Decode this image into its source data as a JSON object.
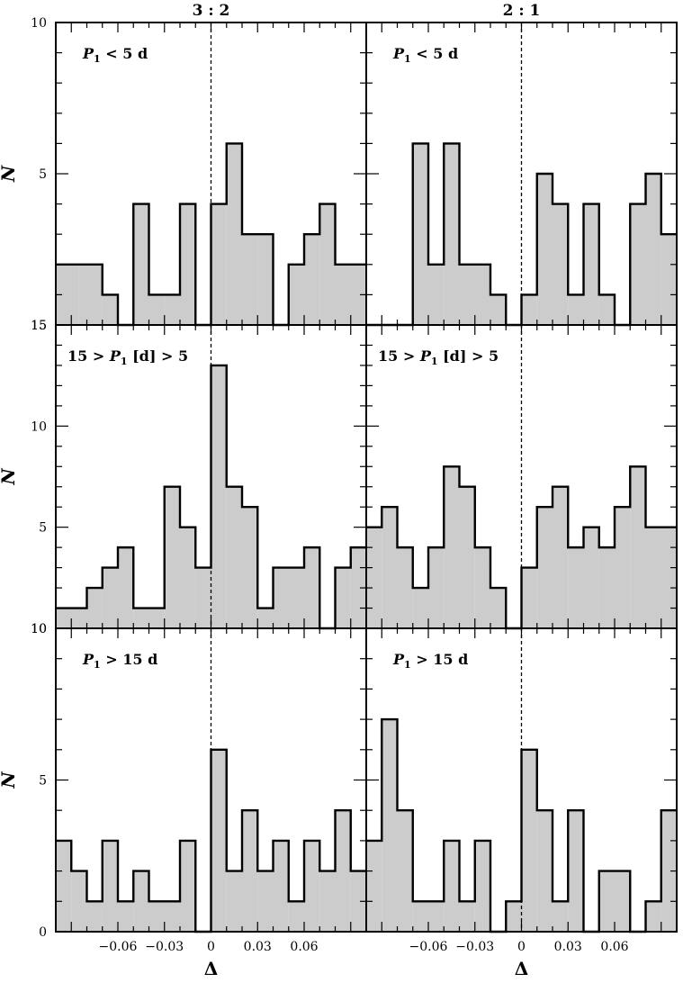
{
  "chart_data": [
    {
      "type": "histogram",
      "resonance": "3 : 2",
      "annotation": {
        "var": "P",
        "sub": "1",
        "rest": " < 5 d"
      },
      "ylabel": "N",
      "ylim": [
        0,
        10
      ],
      "ytick_labels": [
        "5",
        "10"
      ],
      "bottom_label": "15",
      "bins": [
        {
          "x0": -0.1,
          "x1": -0.085,
          "y": 2
        },
        {
          "x0": -0.085,
          "x1": -0.07,
          "y": 2
        },
        {
          "x0": -0.07,
          "x1": -0.06,
          "y": 1
        },
        {
          "x0": -0.06,
          "x1": -0.05,
          "y": 0
        },
        {
          "x0": -0.05,
          "x1": -0.04,
          "y": 4
        },
        {
          "x0": -0.04,
          "x1": -0.03,
          "y": 1
        },
        {
          "x0": -0.03,
          "x1": -0.02,
          "y": 1
        },
        {
          "x0": -0.02,
          "x1": -0.01,
          "y": 4
        },
        {
          "x0": -0.01,
          "x1": 0.0,
          "y": 0
        },
        {
          "x0": 0.0,
          "x1": 0.01,
          "y": 4
        },
        {
          "x0": 0.01,
          "x1": 0.02,
          "y": 6
        },
        {
          "x0": 0.02,
          "x1": 0.03,
          "y": 3
        },
        {
          "x0": 0.03,
          "x1": 0.04,
          "y": 3
        },
        {
          "x0": 0.04,
          "x1": 0.05,
          "y": 0
        },
        {
          "x0": 0.05,
          "x1": 0.06,
          "y": 2
        },
        {
          "x0": 0.06,
          "x1": 0.07,
          "y": 3
        },
        {
          "x0": 0.07,
          "x1": 0.08,
          "y": 4
        },
        {
          "x0": 0.08,
          "x1": 0.1,
          "y": 2
        }
      ]
    },
    {
      "type": "histogram",
      "resonance": "2 : 1",
      "annotation": {
        "var": "P",
        "sub": "1",
        "rest": " < 5 d"
      },
      "ylim": [
        0,
        10
      ],
      "bins": [
        {
          "x0": -0.1,
          "x1": -0.07,
          "y": 0
        },
        {
          "x0": -0.07,
          "x1": -0.06,
          "y": 6
        },
        {
          "x0": -0.06,
          "x1": -0.05,
          "y": 2
        },
        {
          "x0": -0.05,
          "x1": -0.04,
          "y": 6
        },
        {
          "x0": -0.04,
          "x1": -0.02,
          "y": 2
        },
        {
          "x0": -0.02,
          "x1": -0.01,
          "y": 1
        },
        {
          "x0": -0.01,
          "x1": 0.0,
          "y": 0
        },
        {
          "x0": 0.0,
          "x1": 0.01,
          "y": 1
        },
        {
          "x0": 0.01,
          "x1": 0.02,
          "y": 5
        },
        {
          "x0": 0.02,
          "x1": 0.03,
          "y": 4
        },
        {
          "x0": 0.03,
          "x1": 0.04,
          "y": 1
        },
        {
          "x0": 0.04,
          "x1": 0.05,
          "y": 4
        },
        {
          "x0": 0.05,
          "x1": 0.06,
          "y": 1
        },
        {
          "x0": 0.06,
          "x1": 0.07,
          "y": 0
        },
        {
          "x0": 0.07,
          "x1": 0.08,
          "y": 4
        },
        {
          "x0": 0.08,
          "x1": 0.09,
          "y": 5
        },
        {
          "x0": 0.09,
          "x1": 0.1,
          "y": 3
        }
      ]
    },
    {
      "type": "histogram",
      "resonance": "3 : 2",
      "annotation": {
        "pre": "15 > ",
        "var": "P",
        "sub": "1",
        "rest": " [d]  > 5"
      },
      "ylabel": "N",
      "ylim": [
        0,
        15
      ],
      "ytick_labels": [
        "5",
        "10",
        "15"
      ],
      "bottom_label": "10",
      "bins": [
        {
          "x0": -0.1,
          "x1": -0.08,
          "y": 1
        },
        {
          "x0": -0.08,
          "x1": -0.07,
          "y": 2
        },
        {
          "x0": -0.07,
          "x1": -0.06,
          "y": 3
        },
        {
          "x0": -0.06,
          "x1": -0.05,
          "y": 4
        },
        {
          "x0": -0.05,
          "x1": -0.03,
          "y": 1
        },
        {
          "x0": -0.03,
          "x1": -0.02,
          "y": 7
        },
        {
          "x0": -0.02,
          "x1": -0.01,
          "y": 5
        },
        {
          "x0": -0.01,
          "x1": 0.0,
          "y": 3
        },
        {
          "x0": 0.0,
          "x1": 0.01,
          "y": 13
        },
        {
          "x0": 0.01,
          "x1": 0.02,
          "y": 7
        },
        {
          "x0": 0.02,
          "x1": 0.03,
          "y": 6
        },
        {
          "x0": 0.03,
          "x1": 0.04,
          "y": 1
        },
        {
          "x0": 0.04,
          "x1": 0.06,
          "y": 3
        },
        {
          "x0": 0.06,
          "x1": 0.07,
          "y": 4
        },
        {
          "x0": 0.07,
          "x1": 0.08,
          "y": 0
        },
        {
          "x0": 0.08,
          "x1": 0.09,
          "y": 3
        },
        {
          "x0": 0.09,
          "x1": 0.1,
          "y": 4
        }
      ]
    },
    {
      "type": "histogram",
      "resonance": "2 : 1",
      "annotation": {
        "pre": "15 > ",
        "var": "P",
        "sub": "1",
        "rest": " [d]  > 5"
      },
      "ylim": [
        0,
        15
      ],
      "bins": [
        {
          "x0": -0.1,
          "x1": -0.09,
          "y": 5
        },
        {
          "x0": -0.09,
          "x1": -0.08,
          "y": 6
        },
        {
          "x0": -0.08,
          "x1": -0.07,
          "y": 4
        },
        {
          "x0": -0.07,
          "x1": -0.06,
          "y": 2
        },
        {
          "x0": -0.06,
          "x1": -0.05,
          "y": 4
        },
        {
          "x0": -0.05,
          "x1": -0.04,
          "y": 8
        },
        {
          "x0": -0.04,
          "x1": -0.03,
          "y": 7
        },
        {
          "x0": -0.03,
          "x1": -0.02,
          "y": 4
        },
        {
          "x0": -0.02,
          "x1": -0.01,
          "y": 2
        },
        {
          "x0": -0.01,
          "x1": 0.0,
          "y": 0
        },
        {
          "x0": 0.0,
          "x1": 0.01,
          "y": 3
        },
        {
          "x0": 0.01,
          "x1": 0.02,
          "y": 6
        },
        {
          "x0": 0.02,
          "x1": 0.03,
          "y": 7
        },
        {
          "x0": 0.03,
          "x1": 0.04,
          "y": 4
        },
        {
          "x0": 0.04,
          "x1": 0.05,
          "y": 5
        },
        {
          "x0": 0.05,
          "x1": 0.06,
          "y": 4
        },
        {
          "x0": 0.06,
          "x1": 0.07,
          "y": 6
        },
        {
          "x0": 0.07,
          "x1": 0.08,
          "y": 8
        },
        {
          "x0": 0.08,
          "x1": 0.1,
          "y": 5
        }
      ]
    },
    {
      "type": "histogram",
      "resonance": "3 : 2",
      "annotation": {
        "var": "P",
        "sub": "1",
        "rest": " > 15 d"
      },
      "ylabel": "N",
      "ylim": [
        0,
        10
      ],
      "ytick_labels": [
        "0",
        "5",
        "10"
      ],
      "xlabel": "Δ",
      "xtick_labels": [
        {
          "value": -0.06,
          "label": "−0.06"
        },
        {
          "value": -0.03,
          "label": "−0.03"
        },
        {
          "value": 0.0,
          "label": "0"
        },
        {
          "value": 0.03,
          "label": "0.03"
        },
        {
          "value": 0.06,
          "label": "0.06"
        }
      ],
      "bins": [
        {
          "x0": -0.1,
          "x1": -0.09,
          "y": 3
        },
        {
          "x0": -0.09,
          "x1": -0.08,
          "y": 2
        },
        {
          "x0": -0.08,
          "x1": -0.07,
          "y": 1
        },
        {
          "x0": -0.07,
          "x1": -0.06,
          "y": 3
        },
        {
          "x0": -0.06,
          "x1": -0.05,
          "y": 1
        },
        {
          "x0": -0.05,
          "x1": -0.04,
          "y": 2
        },
        {
          "x0": -0.04,
          "x1": -0.02,
          "y": 1
        },
        {
          "x0": -0.02,
          "x1": -0.01,
          "y": 3
        },
        {
          "x0": -0.01,
          "x1": 0.0,
          "y": 0
        },
        {
          "x0": 0.0,
          "x1": 0.01,
          "y": 6
        },
        {
          "x0": 0.01,
          "x1": 0.02,
          "y": 2
        },
        {
          "x0": 0.02,
          "x1": 0.03,
          "y": 4
        },
        {
          "x0": 0.03,
          "x1": 0.04,
          "y": 2
        },
        {
          "x0": 0.04,
          "x1": 0.05,
          "y": 3
        },
        {
          "x0": 0.05,
          "x1": 0.06,
          "y": 1
        },
        {
          "x0": 0.06,
          "x1": 0.07,
          "y": 3
        },
        {
          "x0": 0.07,
          "x1": 0.08,
          "y": 2
        },
        {
          "x0": 0.08,
          "x1": 0.09,
          "y": 4
        },
        {
          "x0": 0.09,
          "x1": 0.1,
          "y": 2
        }
      ]
    },
    {
      "type": "histogram",
      "resonance": "2 : 1",
      "annotation": {
        "var": "P",
        "sub": "1",
        "rest": " > 15 d"
      },
      "ylim": [
        0,
        10
      ],
      "xlabel": "Δ",
      "xtick_labels": [
        {
          "value": -0.06,
          "label": "−0.06"
        },
        {
          "value": -0.03,
          "label": "−0.03"
        },
        {
          "value": 0.0,
          "label": "0"
        },
        {
          "value": 0.03,
          "label": "0.03"
        },
        {
          "value": 0.06,
          "label": "0.06"
        }
      ],
      "bins": [
        {
          "x0": -0.1,
          "x1": -0.09,
          "y": 3
        },
        {
          "x0": -0.09,
          "x1": -0.08,
          "y": 7
        },
        {
          "x0": -0.08,
          "x1": -0.07,
          "y": 4
        },
        {
          "x0": -0.07,
          "x1": -0.05,
          "y": 1
        },
        {
          "x0": -0.05,
          "x1": -0.04,
          "y": 3
        },
        {
          "x0": -0.04,
          "x1": -0.03,
          "y": 1
        },
        {
          "x0": -0.03,
          "x1": -0.02,
          "y": 3
        },
        {
          "x0": -0.02,
          "x1": -0.01,
          "y": 0
        },
        {
          "x0": -0.01,
          "x1": 0.0,
          "y": 1
        },
        {
          "x0": 0.0,
          "x1": 0.01,
          "y": 6
        },
        {
          "x0": 0.01,
          "x1": 0.02,
          "y": 4
        },
        {
          "x0": 0.02,
          "x1": 0.03,
          "y": 1
        },
        {
          "x0": 0.03,
          "x1": 0.04,
          "y": 4
        },
        {
          "x0": 0.04,
          "x1": 0.05,
          "y": 0
        },
        {
          "x0": 0.05,
          "x1": 0.07,
          "y": 2
        },
        {
          "x0": 0.07,
          "x1": 0.08,
          "y": 0
        },
        {
          "x0": 0.08,
          "x1": 0.09,
          "y": 1
        },
        {
          "x0": 0.09,
          "x1": 0.1,
          "y": 4
        }
      ]
    }
  ],
  "style": {
    "fill": "#cccccc",
    "stroke": "#000000",
    "xlim": [
      -0.1,
      0.1
    ],
    "reference_line_x": 0.0
  }
}
